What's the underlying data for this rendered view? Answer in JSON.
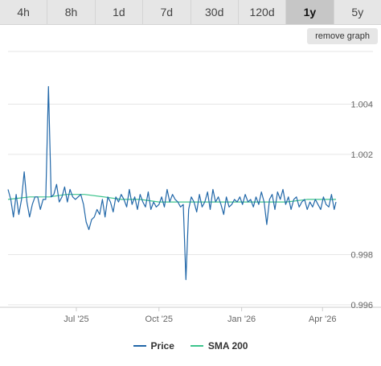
{
  "tabs": [
    "4h",
    "8h",
    "1d",
    "7d",
    "30d",
    "120d",
    "1y",
    "5y"
  ],
  "active_tab": "1y",
  "remove_graph_label": "remove graph",
  "colors": {
    "price": "#2167a8",
    "sma": "#3cc48c",
    "grid": "#e6e6e6"
  },
  "chart_data": {
    "type": "line",
    "xlabel": "",
    "ylabel": "",
    "x_ticks": [
      "Jul '25",
      "Oct '25",
      "Jan '26",
      "Apr '26"
    ],
    "x_tick_dates": [
      "2025-07-01",
      "2025-10-01",
      "2026-01-01",
      "2026-04-01"
    ],
    "x_range": [
      "2025-04-16",
      "2026-04-16"
    ],
    "y_ticks": [
      "1.004",
      "1.002",
      "0.998",
      "0.996"
    ],
    "y_tick_values": [
      1.004,
      1.002,
      0.998,
      0.996
    ],
    "ylim": [
      0.9959,
      1.0061
    ],
    "grid": true,
    "legend_position": "bottom-center",
    "series": [
      {
        "name": "Price",
        "dates": [
          "2025-04-16",
          "2025-04-19",
          "2025-04-22",
          "2025-04-25",
          "2025-04-28",
          "2025-05-01",
          "2025-05-04",
          "2025-05-07",
          "2025-05-10",
          "2025-05-13",
          "2025-05-16",
          "2025-05-19",
          "2025-05-22",
          "2025-05-25",
          "2025-05-28",
          "2025-05-31",
          "2025-06-03",
          "2025-06-06",
          "2025-06-09",
          "2025-06-12",
          "2025-06-15",
          "2025-06-18",
          "2025-06-21",
          "2025-06-24",
          "2025-06-27",
          "2025-06-30",
          "2025-07-03",
          "2025-07-06",
          "2025-07-09",
          "2025-07-12",
          "2025-07-15",
          "2025-07-18",
          "2025-07-21",
          "2025-07-24",
          "2025-07-27",
          "2025-07-30",
          "2025-08-02",
          "2025-08-05",
          "2025-08-08",
          "2025-08-11",
          "2025-08-14",
          "2025-08-17",
          "2025-08-20",
          "2025-08-23",
          "2025-08-26",
          "2025-08-29",
          "2025-09-01",
          "2025-09-04",
          "2025-09-07",
          "2025-09-10",
          "2025-09-13",
          "2025-09-16",
          "2025-09-19",
          "2025-09-22",
          "2025-09-25",
          "2025-09-28",
          "2025-10-01",
          "2025-10-04",
          "2025-10-07",
          "2025-10-10",
          "2025-10-13",
          "2025-10-16",
          "2025-10-19",
          "2025-10-22",
          "2025-10-25",
          "2025-10-28",
          "2025-10-31",
          "2025-11-03",
          "2025-11-06",
          "2025-11-09",
          "2025-11-12",
          "2025-11-15",
          "2025-11-18",
          "2025-11-21",
          "2025-11-24",
          "2025-11-27",
          "2025-11-30",
          "2025-12-03",
          "2025-12-06",
          "2025-12-09",
          "2025-12-12",
          "2025-12-15",
          "2025-12-18",
          "2025-12-21",
          "2025-12-24",
          "2025-12-27",
          "2025-12-30",
          "2026-01-02",
          "2026-01-05",
          "2026-01-08",
          "2026-01-11",
          "2026-01-14",
          "2026-01-17",
          "2026-01-20",
          "2026-01-23",
          "2026-01-26",
          "2026-01-29",
          "2026-02-01",
          "2026-02-04",
          "2026-02-07",
          "2026-02-10",
          "2026-02-13",
          "2026-02-16",
          "2026-02-19",
          "2026-02-22",
          "2026-02-25",
          "2026-02-28",
          "2026-03-03",
          "2026-03-06",
          "2026-03-09",
          "2026-03-12",
          "2026-03-15",
          "2026-03-18",
          "2026-03-21",
          "2026-03-24",
          "2026-03-27",
          "2026-03-30",
          "2026-04-02",
          "2026-04-05",
          "2026-04-08",
          "2026-04-11",
          "2026-04-14",
          "2026-04-16"
        ],
        "values": [
          1.0006,
          1.0002,
          0.9995,
          1.0004,
          0.9996,
          1.0002,
          1.0013,
          1.0001,
          0.9995,
          1.0,
          1.0003,
          1.0003,
          0.9998,
          1.0002,
          1.0002,
          1.0047,
          1.0003,
          1.0004,
          1.0008,
          1.0001,
          1.0003,
          1.0007,
          1.0001,
          1.0006,
          1.0003,
          1.0002,
          1.0003,
          1.0004,
          1.0,
          0.9993,
          0.999,
          0.9994,
          0.9995,
          0.9998,
          0.9996,
          1.0002,
          0.9995,
          1.0003,
          1.0001,
          0.9997,
          1.0003,
          1.0001,
          1.0004,
          1.0002,
          0.9999,
          1.0006,
          1.0,
          1.0003,
          0.9998,
          1.0004,
          1.0001,
          0.9999,
          1.0005,
          0.9998,
          1.0001,
          0.9999,
          1.0,
          1.0003,
          0.9999,
          1.0006,
          1.0001,
          1.0004,
          1.0002,
          1.0001,
          0.9999,
          1.0,
          0.997,
          0.9998,
          1.0003,
          1.0001,
          0.9997,
          1.0004,
          0.9999,
          1.0001,
          1.0005,
          0.9998,
          1.0006,
          1.0001,
          1.0003,
          1.0,
          0.9996,
          1.0003,
          0.9999,
          1.0,
          1.0002,
          1.0001,
          1.0003,
          1.0,
          1.0004,
          1.0001,
          1.0002,
          0.9999,
          1.0003,
          1.0,
          1.0005,
          1.0001,
          0.9992,
          1.0002,
          1.0004,
          0.9998,
          1.0005,
          1.0002,
          1.0006,
          1.0,
          1.0003,
          0.9998,
          1.0002,
          1.0003,
          0.9999,
          1.0001,
          1.0002,
          0.9998,
          1.0001,
          0.9999,
          1.0002,
          1.0,
          0.9998,
          1.0003,
          1.0,
          0.9999,
          1.0004,
          0.9998,
          1.0001
        ]
      },
      {
        "name": "SMA 200",
        "dates": [
          "2025-04-16",
          "2025-05-10",
          "2025-06-01",
          "2025-06-20",
          "2025-07-10",
          "2025-08-01",
          "2025-08-20",
          "2025-09-10",
          "2025-10-01",
          "2025-10-20",
          "2025-11-15",
          "2025-12-10",
          "2026-01-01",
          "2026-01-25",
          "2026-02-20",
          "2026-03-15",
          "2026-04-16"
        ],
        "values": [
          1.0002,
          1.0003,
          1.0003,
          1.0004,
          1.0004,
          1.0003,
          1.0002,
          1.0002,
          1.0001,
          1.0001,
          1.0001,
          1.0001,
          1.0001,
          1.0001,
          1.0001,
          1.0002,
          1.0002
        ]
      }
    ]
  }
}
